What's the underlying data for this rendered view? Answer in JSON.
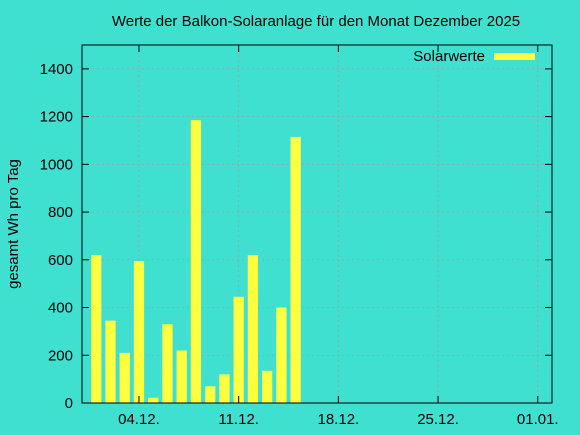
{
  "chart_data": {
    "type": "bar",
    "title": "Werte der Balkon-Solaranlage für den Monat Dezember 2025",
    "ylabel": "gesamt Wh pro Tag",
    "xlabel": "",
    "ylim": [
      0,
      1500
    ],
    "yticks": [
      0,
      200,
      400,
      600,
      800,
      1000,
      1200,
      1400
    ],
    "xlim": [
      "2025-11-30",
      "2026-01-02"
    ],
    "xticks": [
      {
        "date": "2025-12-04",
        "label": "04.12."
      },
      {
        "date": "2025-12-11",
        "label": "11.12."
      },
      {
        "date": "2025-12-18",
        "label": "18.12."
      },
      {
        "date": "2025-12-25",
        "label": "25.12."
      },
      {
        "date": "2026-01-01",
        "label": "01.01."
      }
    ],
    "grid": true,
    "legend_position": "top-right",
    "series": [
      {
        "name": "Solarwerte",
        "color": "#ffff40",
        "points": [
          {
            "date": "2025-12-01",
            "value": 620
          },
          {
            "date": "2025-12-02",
            "value": 345
          },
          {
            "date": "2025-12-03",
            "value": 210
          },
          {
            "date": "2025-12-04",
            "value": 595
          },
          {
            "date": "2025-12-05",
            "value": 22
          },
          {
            "date": "2025-12-06",
            "value": 330
          },
          {
            "date": "2025-12-07",
            "value": 220
          },
          {
            "date": "2025-12-08",
            "value": 1185
          },
          {
            "date": "2025-12-09",
            "value": 70
          },
          {
            "date": "2025-12-10",
            "value": 120
          },
          {
            "date": "2025-12-11",
            "value": 445
          },
          {
            "date": "2025-12-12",
            "value": 620
          },
          {
            "date": "2025-12-13",
            "value": 135
          },
          {
            "date": "2025-12-14",
            "value": 400
          },
          {
            "date": "2025-12-15",
            "value": 1115
          }
        ]
      }
    ]
  }
}
